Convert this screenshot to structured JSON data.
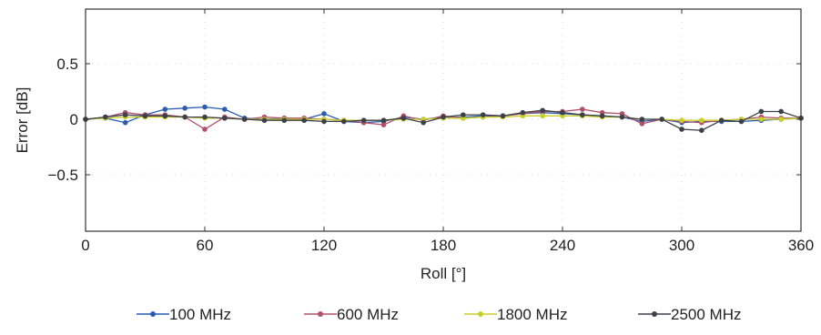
{
  "chart_data": {
    "type": "line",
    "title": "",
    "xlabel": "Roll [°]",
    "ylabel": "Error [dB]",
    "xlim": [
      0,
      360
    ],
    "ylim": [
      -1,
      1
    ],
    "x_ticks": [
      0,
      60,
      120,
      180,
      240,
      300,
      360
    ],
    "x_tick_labels": [
      "0",
      "60",
      "120",
      "180",
      "240",
      "300",
      "360"
    ],
    "y_ticks": [
      0.5,
      0,
      -0.5
    ],
    "y_tick_labels": [
      "0.5",
      "0",
      "−0.5"
    ],
    "grid": true,
    "legend_position": "bottom",
    "x": [
      0,
      10,
      20,
      30,
      40,
      50,
      60,
      70,
      80,
      90,
      100,
      110,
      120,
      130,
      140,
      150,
      160,
      170,
      180,
      190,
      200,
      210,
      220,
      230,
      240,
      250,
      260,
      270,
      280,
      290,
      300,
      310,
      320,
      330,
      340,
      350,
      360
    ],
    "series": [
      {
        "name": "100 MHz",
        "color": "#2a5db0",
        "values": [
          0,
          0.01,
          -0.03,
          0.04,
          0.09,
          0.1,
          0.11,
          0.09,
          0.01,
          0.0,
          0.01,
          0.0,
          0.05,
          -0.02,
          -0.03,
          -0.02,
          0.02,
          0.0,
          0.02,
          0.02,
          0.03,
          0.03,
          0.05,
          0.06,
          0.05,
          0.04,
          0.03,
          0.02,
          -0.02,
          0.0,
          -0.03,
          -0.02,
          -0.02,
          -0.02,
          -0.01,
          0.0,
          0.01
        ]
      },
      {
        "name": "600 MHz",
        "color": "#b0506a",
        "values": [
          0,
          0.02,
          0.06,
          0.04,
          0.04,
          0.02,
          -0.09,
          0.02,
          0.0,
          0.02,
          0.01,
          0.01,
          0.0,
          -0.01,
          -0.03,
          -0.05,
          0.03,
          -0.01,
          0.03,
          0.01,
          0.02,
          0.03,
          0.05,
          0.07,
          0.07,
          0.09,
          0.06,
          0.05,
          -0.04,
          0.0,
          -0.02,
          -0.03,
          -0.01,
          0.0,
          0.02,
          0.01,
          0.01
        ]
      },
      {
        "name": "1800 MHz",
        "color": "#c9cf2a",
        "values": [
          0,
          0.01,
          0.02,
          0.02,
          0.02,
          0.02,
          0.01,
          0.01,
          0.0,
          0.0,
          0.0,
          0.0,
          0.0,
          -0.01,
          -0.01,
          -0.01,
          0.0,
          0.0,
          0.01,
          0.01,
          0.02,
          0.02,
          0.03,
          0.03,
          0.03,
          0.03,
          0.02,
          0.02,
          0.0,
          0.0,
          -0.01,
          -0.01,
          -0.01,
          0.0,
          0.0,
          0.0,
          0.01
        ]
      },
      {
        "name": "2500 MHz",
        "color": "#3c4048",
        "values": [
          0,
          0.02,
          0.04,
          0.03,
          0.03,
          0.02,
          0.02,
          0.01,
          0.0,
          -0.01,
          -0.01,
          -0.01,
          -0.02,
          -0.02,
          -0.01,
          -0.01,
          0.01,
          -0.03,
          0.02,
          0.04,
          0.04,
          0.03,
          0.06,
          0.08,
          0.06,
          0.04,
          0.03,
          0.02,
          0.0,
          0.0,
          -0.09,
          -0.1,
          -0.01,
          -0.02,
          0.07,
          0.07,
          0.01
        ]
      }
    ]
  }
}
